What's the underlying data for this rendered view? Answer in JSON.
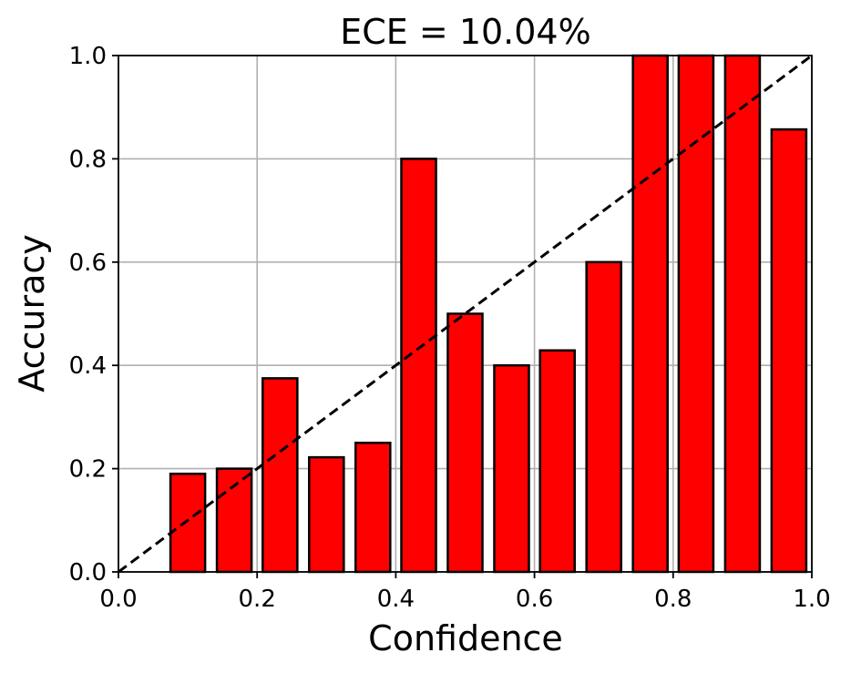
{
  "chart_data": {
    "type": "bar",
    "title": "ECE = 10.04%",
    "xlabel": "Confidence",
    "ylabel": "Accuracy",
    "xlim": [
      0.0,
      1.0
    ],
    "ylim": [
      0.0,
      1.0
    ],
    "grid": true,
    "x": [
      0.1,
      0.167,
      0.233,
      0.3,
      0.367,
      0.433,
      0.5,
      0.567,
      0.633,
      0.7,
      0.767,
      0.833,
      0.9,
      0.967
    ],
    "values": [
      0.19,
      0.2,
      0.375,
      0.222,
      0.25,
      0.8,
      0.5,
      0.4,
      0.429,
      0.6,
      1.0,
      1.0,
      1.0,
      0.857
    ],
    "bar_width": 0.05,
    "reference_line": {
      "from": [
        0.0,
        0.0
      ],
      "to": [
        1.0,
        1.0
      ],
      "style": "dashed"
    },
    "xticks": [
      "0.0",
      "0.2",
      "0.4",
      "0.6",
      "0.8",
      "1.0"
    ],
    "yticks": [
      "0.0",
      "0.2",
      "0.4",
      "0.6",
      "0.8",
      "1.0"
    ],
    "bar_color": "#ff0000",
    "edge_color": "#000000",
    "grid_color": "#b0b0b0"
  }
}
